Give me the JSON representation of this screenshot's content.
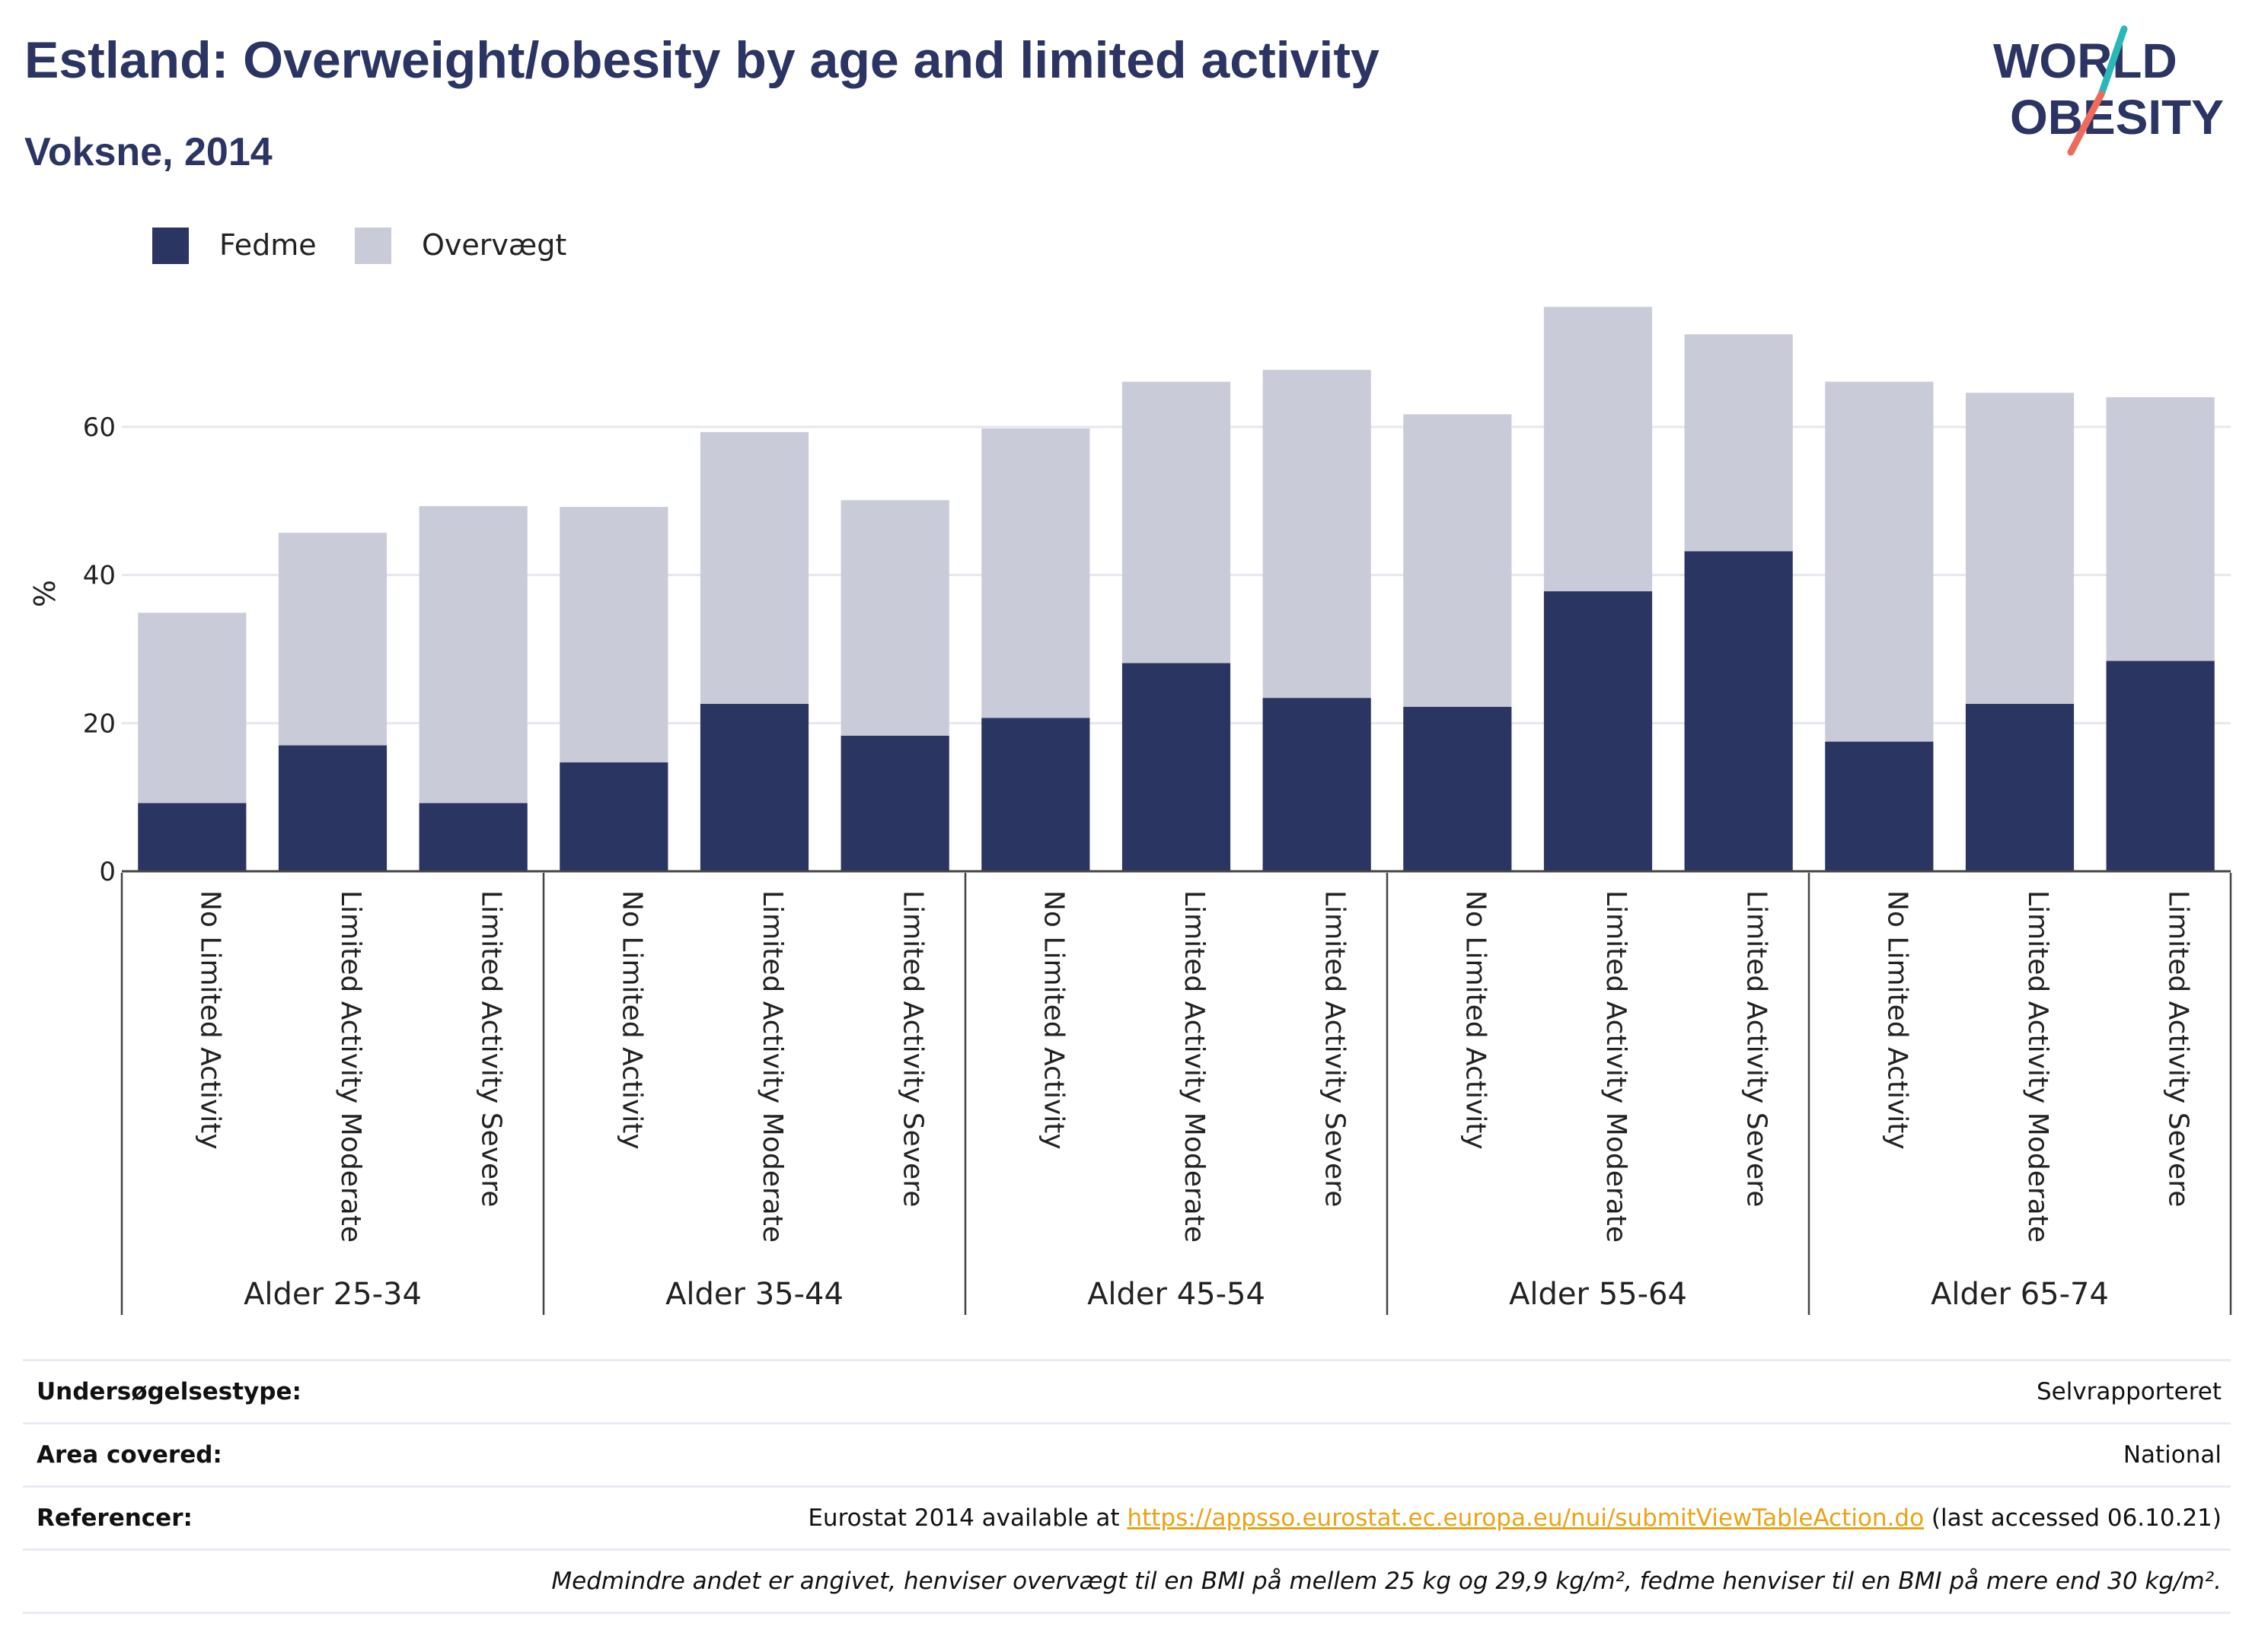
{
  "header": {
    "title": "Estland: Overweight/obesity by age and limited activity",
    "subtitle": "Voksne, 2014"
  },
  "logo": {
    "line1": "WORLD",
    "line2": "OBESITY",
    "text": "WORLD OBESITY"
  },
  "colors": {
    "fedme": "#2b3562",
    "overvaegt": "#c9cbd8",
    "title": "#2b3462",
    "link": "#e8a317",
    "logo_teal": "#2ab7b7",
    "logo_coral": "#ee6a5a"
  },
  "legend": [
    {
      "label": "Fedme",
      "color": "#2b3562"
    },
    {
      "label": "Overvægt",
      "color": "#c9cbd8"
    }
  ],
  "chart_data": {
    "type": "bar",
    "stacked": true,
    "ylabel": "%",
    "ylim": [
      0,
      80
    ],
    "yticks": [
      0,
      20,
      40,
      60
    ],
    "grid": true,
    "legend_position": "top-left",
    "groups": [
      {
        "label": "Alder 25-34",
        "categories": [
          "No Limited Activity",
          "Limited Activity Moderate",
          "Limited Activity Severe"
        ]
      },
      {
        "label": "Alder 35-44",
        "categories": [
          "No Limited Activity",
          "Limited Activity Moderate",
          "Limited Activity Severe"
        ]
      },
      {
        "label": "Alder 45-54",
        "categories": [
          "No Limited Activity",
          "Limited Activity Moderate",
          "Limited Activity Severe"
        ]
      },
      {
        "label": "Alder 55-64",
        "categories": [
          "No Limited Activity",
          "Limited Activity Moderate",
          "Limited Activity Severe"
        ]
      },
      {
        "label": "Alder 65-74",
        "categories": [
          "No Limited Activity",
          "Limited Activity Moderate",
          "Limited Activity Severe"
        ]
      }
    ],
    "series": [
      {
        "name": "Fedme",
        "values": [
          9.2,
          17,
          9.2,
          14.7,
          22.6,
          18.3,
          20.7,
          28.1,
          23.4,
          22.2,
          37.8,
          43.2,
          17.5,
          22.6,
          28.4
        ]
      },
      {
        "name": "Overvægt",
        "values": [
          25.7,
          28.7,
          40.1,
          34.5,
          36.7,
          31.8,
          39.1,
          38.0,
          44.3,
          39.5,
          38.4,
          29.3,
          48.6,
          42.0,
          35.6
        ]
      }
    ]
  },
  "footer": {
    "survey_type": {
      "label": "Undersøgelsestype:",
      "value": "Selvrapporteret"
    },
    "area": {
      "label": "Area covered:",
      "value": "National"
    },
    "references": {
      "label": "Referencer:",
      "prefix": "Eurostat 2014 available at ",
      "link": "https://appsso.eurostat.ec.europa.eu/nui/submitViewTableAction.do",
      "suffix": " (last accessed 06.10.21)"
    },
    "note": "Medmindre andet er angivet, henviser overvægt til en BMI på mellem 25 kg og 29,9 kg/m², fedme henviser til en BMI på mere end 30 kg/m²."
  }
}
